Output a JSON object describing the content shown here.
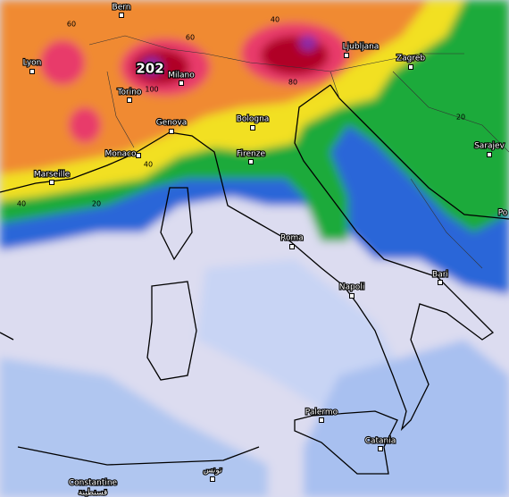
{
  "cities": [
    "Bern",
    "Lyon",
    "Torino",
    "Milano",
    "Genova",
    "Bologna",
    "Monaco",
    "Marseille",
    "Firenze",
    "Ljubljana",
    "Zagreb",
    "Sarajev",
    "Roma",
    "Napoli",
    "Bari",
    "Palermo",
    "Catania",
    "Constantine",
    "قسنطينة",
    "تونس",
    "Po"
  ],
  "contour_labels": [
    60,
    40,
    60,
    202,
    100,
    80,
    40,
    40,
    20,
    20
  ]
}
